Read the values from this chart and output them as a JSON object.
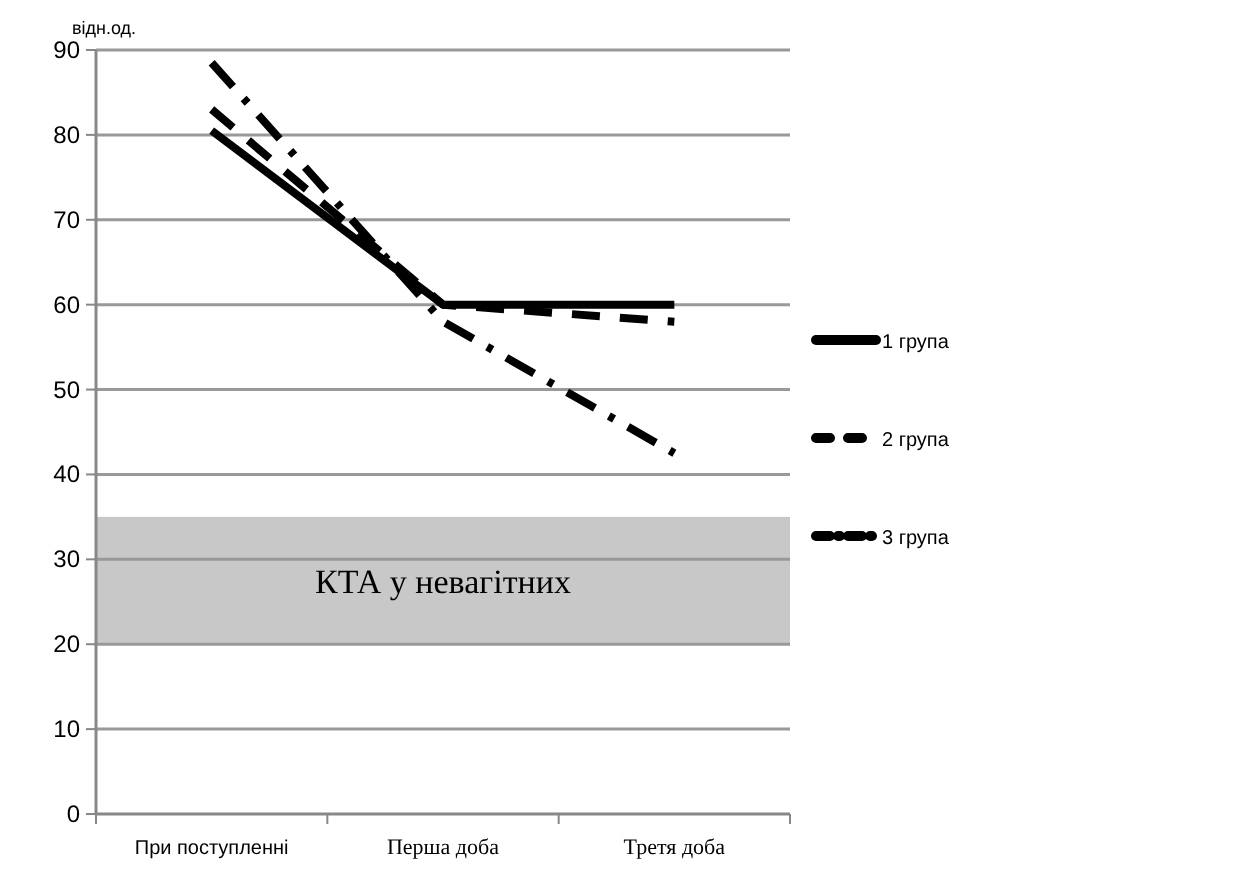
{
  "chart_data": {
    "type": "line",
    "ylabel": "відн.од.",
    "categories": [
      "При поступленні",
      "Перша доба",
      "Третя доба"
    ],
    "series": [
      {
        "name": "1 група",
        "color": "#000000",
        "values": [
          80.5,
          60,
          60
        ],
        "line_style": "solid"
      },
      {
        "name": "2 група",
        "color": "#000000",
        "values": [
          83,
          60,
          58
        ],
        "line_style": "dashed"
      },
      {
        "name": "3 група",
        "color": "#000000",
        "values": [
          88.5,
          58,
          42.5
        ],
        "line_style": "dashdot"
      }
    ],
    "ylim": [
      0,
      90
    ],
    "yticks": [
      0,
      10,
      20,
      30,
      40,
      50,
      60,
      70,
      80,
      90
    ],
    "grid": "y",
    "legend": "right",
    "marker": "none",
    "bands": [
      {
        "axis": "y",
        "from": 20,
        "to": 35,
        "label": "КТА у невагітних",
        "color": "#c8c8c8"
      }
    ]
  }
}
